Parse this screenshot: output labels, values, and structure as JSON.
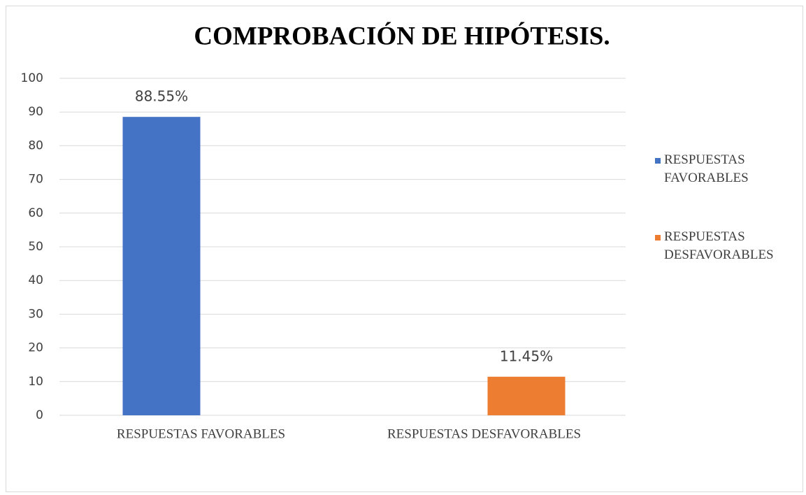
{
  "chart_data": {
    "type": "bar",
    "title": "COMPROBACIÓN DE HIPÓTESIS.",
    "categories": [
      "RESPUESTAS FAVORABLES",
      "RESPUESTAS DESFAVORABLES"
    ],
    "series": [
      {
        "name": "RESPUESTAS FAVORABLES",
        "color": "#4472c4",
        "values": [
          88.55,
          null
        ],
        "value_labels": [
          "88.55%",
          null
        ]
      },
      {
        "name": "RESPUESTAS DESFAVORABLES",
        "color": "#ed7d31",
        "values": [
          null,
          11.45
        ],
        "value_labels": [
          null,
          "11.45%"
        ]
      }
    ],
    "ylim": [
      0,
      100
    ],
    "yticks": [
      0,
      10,
      20,
      30,
      40,
      50,
      60,
      70,
      80,
      90,
      100
    ],
    "grid": true,
    "legend": "right"
  }
}
